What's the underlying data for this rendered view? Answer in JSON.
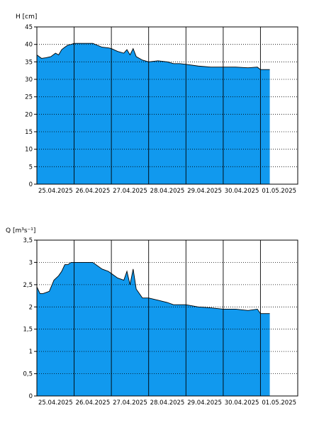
{
  "charts": {
    "style": {
      "fill_color": "#1199ee",
      "line_color": "#000000",
      "grid_color": "#000000"
    }
  },
  "chart_data": [
    {
      "type": "area",
      "ylabel": "H [cm]",
      "ylim": [
        0,
        45
      ],
      "yticks": [
        0,
        5,
        10,
        15,
        20,
        25,
        30,
        35,
        40,
        45
      ],
      "ytick_labels": [
        "0",
        "5",
        "10",
        "15",
        "20",
        "25",
        "30",
        "35",
        "40",
        "45"
      ],
      "xlim": [
        "25.04.2025 00:00",
        "02.05.2025 00:00"
      ],
      "xtick_labels": [
        "25.04.2025",
        "26.04.2025",
        "27.04.2025",
        "28.04.2025",
        "29.04.2025",
        "30.04.2025",
        "01.05.2025"
      ],
      "grid": "vertical solid at days, horizontal dotted",
      "series": [
        {
          "x": [
            "25.04.2025 00:00",
            "25.04.2025 03:00",
            "25.04.2025 06:00",
            "25.04.2025 09:00",
            "25.04.2025 12:00",
            "25.04.2025 14:00",
            "25.04.2025 16:00",
            "25.04.2025 18:00",
            "25.04.2025 20:00",
            "25.04.2025 22:00",
            "26.04.2025 00:00",
            "26.04.2025 06:00",
            "26.04.2025 12:00",
            "26.04.2025 18:00",
            "26.04.2025 22:00",
            "27.04.2025 00:00",
            "27.04.2025 04:00",
            "27.04.2025 08:00",
            "27.04.2025 10:00",
            "27.04.2025 12:00",
            "27.04.2025 14:00",
            "27.04.2025 16:00",
            "27.04.2025 18:00",
            "27.04.2025 20:00",
            "28.04.2025 00:00",
            "28.04.2025 06:00",
            "28.04.2025 12:00",
            "28.04.2025 16:00",
            "28.04.2025 20:00",
            "29.04.2025 00:00",
            "29.04.2025 08:00",
            "29.04.2025 16:00",
            "30.04.2025 00:00",
            "30.04.2025 08:00",
            "30.04.2025 16:00",
            "30.04.2025 22:00",
            "01.05.2025 00:00",
            "01.05.2025 06:00"
          ],
          "values": [
            37,
            36,
            36.2,
            36.5,
            37.5,
            37,
            38.5,
            39.2,
            39.8,
            40,
            40.3,
            40.3,
            40.3,
            39.2,
            39,
            38.8,
            38,
            37.5,
            38.5,
            37,
            38.8,
            36.5,
            36,
            35.5,
            35,
            35.3,
            35,
            34.5,
            34.5,
            34.3,
            33.8,
            33.5,
            33.5,
            33.5,
            33.3,
            33.5,
            32.8,
            32.8
          ]
        }
      ]
    },
    {
      "type": "area",
      "ylabel": "Q [m³s⁻¹]",
      "ylim": [
        0,
        3.5
      ],
      "yticks": [
        0,
        0.5,
        1,
        1.5,
        2,
        2.5,
        3,
        3.5
      ],
      "ytick_labels": [
        "0",
        "0,5",
        "1",
        "1,5",
        "2",
        "2,5",
        "3",
        "3,5"
      ],
      "xlim": [
        "25.04.2025 00:00",
        "02.05.2025 00:00"
      ],
      "xtick_labels": [
        "25.04.2025",
        "26.04.2025",
        "27.04.2025",
        "28.04.2025",
        "29.04.2025",
        "30.04.2025",
        "01.05.2025"
      ],
      "grid": "vertical solid at days, horizontal dotted",
      "series": [
        {
          "x": [
            "25.04.2025 00:00",
            "25.04.2025 02:00",
            "25.04.2025 04:00",
            "25.04.2025 08:00",
            "25.04.2025 11:00",
            "25.04.2025 14:00",
            "25.04.2025 16:00",
            "25.04.2025 18:00",
            "25.04.2025 20:00",
            "25.04.2025 22:00",
            "26.04.2025 00:00",
            "26.04.2025 06:00",
            "26.04.2025 12:00",
            "26.04.2025 18:00",
            "26.04.2025 22:00",
            "27.04.2025 00:00",
            "27.04.2025 04:00",
            "27.04.2025 08:00",
            "27.04.2025 10:00",
            "27.04.2025 12:00",
            "27.04.2025 14:00",
            "27.04.2025 16:00",
            "27.04.2025 18:00",
            "27.04.2025 20:00",
            "28.04.2025 00:00",
            "28.04.2025 06:00",
            "28.04.2025 12:00",
            "28.04.2025 16:00",
            "28.04.2025 20:00",
            "29.04.2025 00:00",
            "29.04.2025 08:00",
            "29.04.2025 16:00",
            "30.04.2025 00:00",
            "30.04.2025 08:00",
            "30.04.2025 16:00",
            "30.04.2025 22:00",
            "01.05.2025 00:00",
            "01.05.2025 06:00"
          ],
          "values": [
            2.45,
            2.3,
            2.3,
            2.35,
            2.6,
            2.7,
            2.8,
            2.95,
            2.95,
            3,
            3,
            3,
            3,
            2.85,
            2.8,
            2.75,
            2.65,
            2.6,
            2.8,
            2.5,
            2.85,
            2.4,
            2.3,
            2.2,
            2.2,
            2.15,
            2.1,
            2.05,
            2.05,
            2.05,
            2.0,
            1.98,
            1.95,
            1.95,
            1.92,
            1.95,
            1.85,
            1.85
          ]
        }
      ]
    }
  ]
}
